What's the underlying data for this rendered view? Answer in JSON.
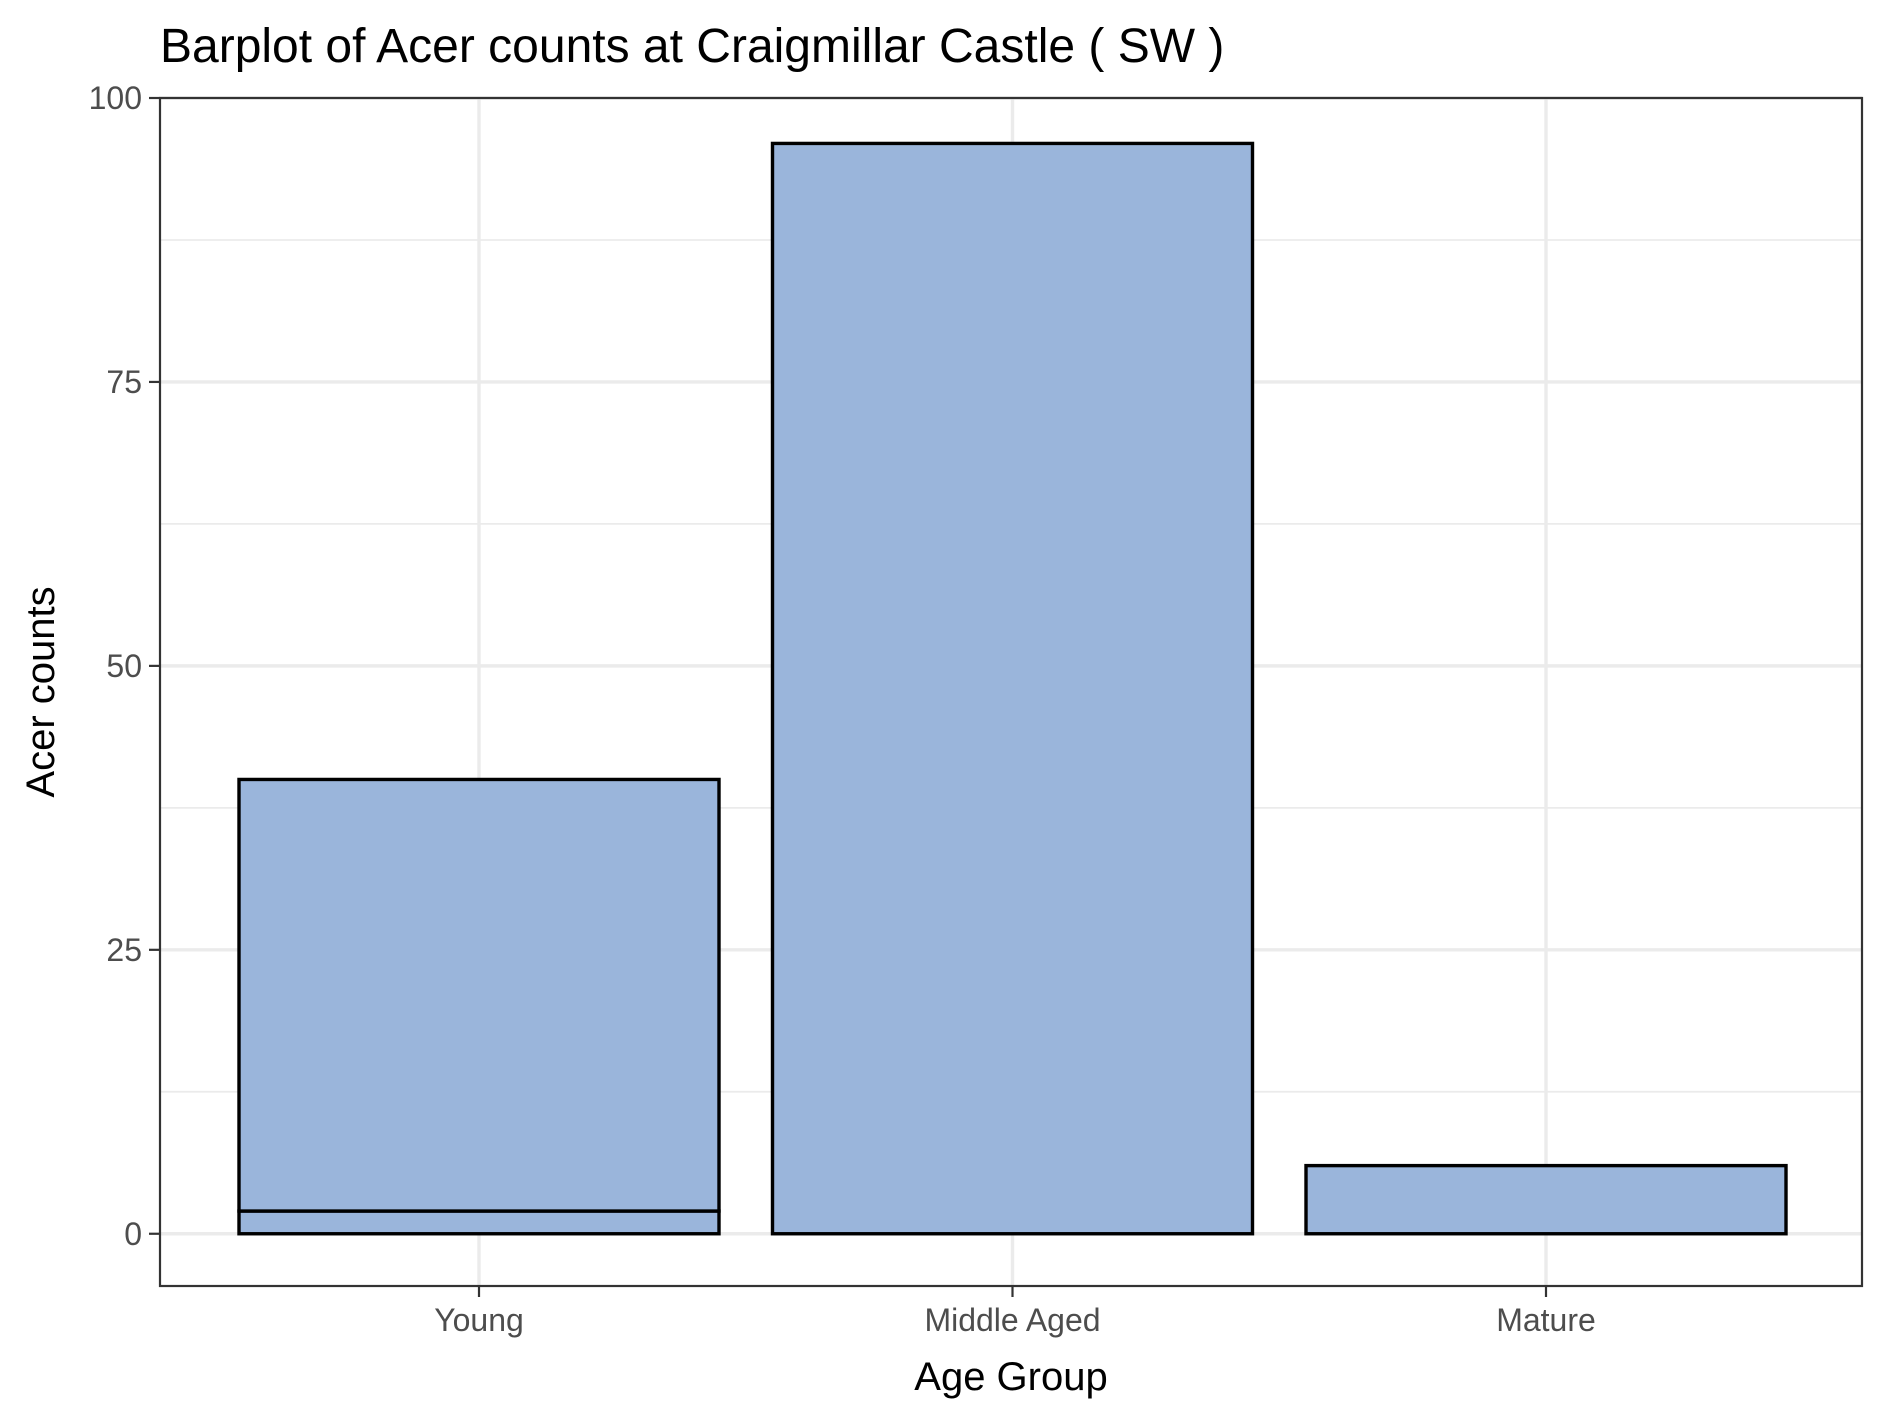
{
  "chart_data": {
    "type": "bar",
    "title": "Barplot of Acer counts at Craigmillar Castle ( SW )",
    "xlabel": "Age Group",
    "ylabel": "Acer counts",
    "categories": [
      "Young",
      "Middle Aged",
      "Mature"
    ],
    "stacks": [
      [
        2,
        38
      ],
      [
        96
      ],
      [
        6
      ]
    ],
    "ylim": [
      -4.6,
      100
    ],
    "yticks": [
      0,
      25,
      50,
      75,
      100
    ],
    "ytick_labels": [
      "0",
      "25",
      "50",
      "75",
      "100"
    ],
    "minor_yticks": [
      12.5,
      37.5,
      62.5,
      87.5
    ],
    "grid": true,
    "legend": "none",
    "bar_fill": "#9ab5db",
    "bar_outline": "#000000"
  }
}
